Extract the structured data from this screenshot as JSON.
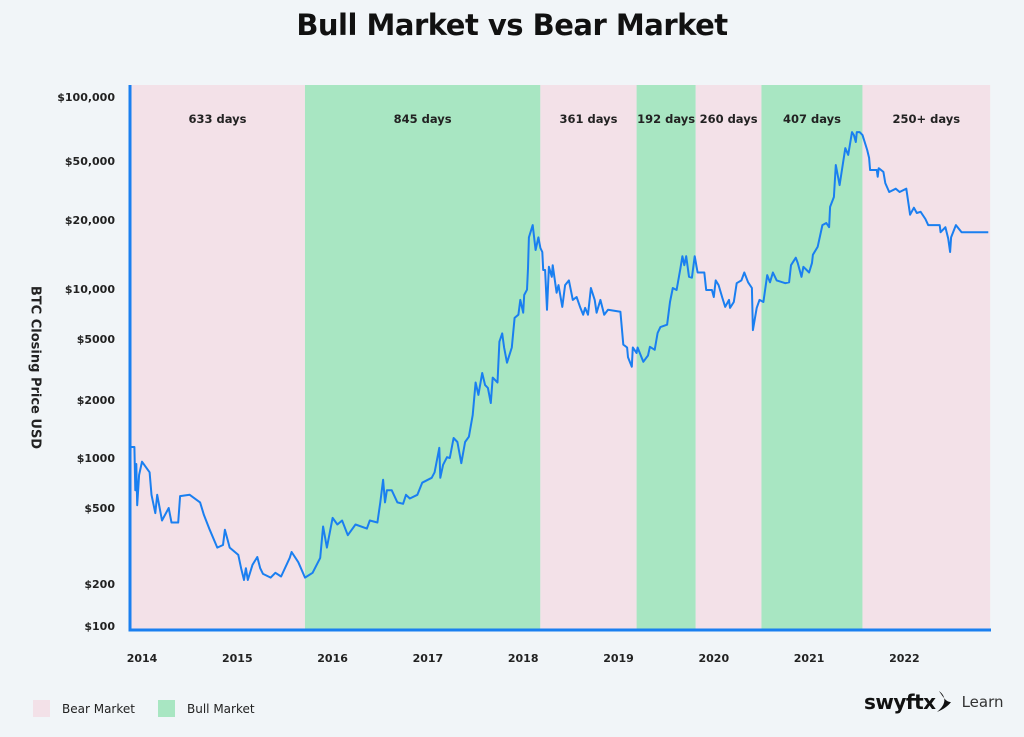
{
  "chart_data": {
    "type": "line",
    "title": "Bull Market vs Bear Market",
    "ylabel": "BTC Closing Price USD",
    "xlabel": "",
    "y_scale": "log-like (tick spacing as printed)",
    "y_ticks": [
      100,
      200,
      500,
      1000,
      2000,
      5000,
      10000,
      20000,
      50000,
      100000
    ],
    "y_tick_labels": [
      "$100",
      "$200",
      "$500",
      "$1000",
      "$2000",
      "$5000",
      "$10,000",
      "$20,000",
      "$50,000",
      "$100,000"
    ],
    "x_ticks": [
      2014,
      2015,
      2016,
      2017,
      2018,
      2019,
      2020,
      2021,
      2022
    ],
    "x_tick_labels": [
      "2014",
      "2015",
      "2016",
      "2017",
      "2018",
      "2019",
      "2020",
      "2021",
      "2022"
    ],
    "xlim": [
      2013.87,
      2022.9
    ],
    "ylim": [
      100,
      120000
    ],
    "grid": false,
    "line_color": "#1a7ff0",
    "bands": [
      {
        "type": "bear",
        "start": 2013.87,
        "end": 2015.71,
        "label": "633 days"
      },
      {
        "type": "bull",
        "start": 2015.71,
        "end": 2018.18,
        "label": "845 days"
      },
      {
        "type": "bear",
        "start": 2018.18,
        "end": 2019.19,
        "label": "361 days"
      },
      {
        "type": "bull",
        "start": 2019.19,
        "end": 2019.81,
        "label": "192 days"
      },
      {
        "type": "bear",
        "start": 2019.81,
        "end": 2020.5,
        "label": "260 days"
      },
      {
        "type": "bull",
        "start": 2020.5,
        "end": 2021.56,
        "label": "407 days"
      },
      {
        "type": "bear",
        "start": 2021.56,
        "end": 2022.9,
        "label": "250+ days"
      }
    ],
    "band_colors": {
      "bear": "#f3e1e8",
      "bull": "#a8e6c2"
    },
    "series": [
      {
        "x": [
          2013.87,
          2013.88,
          2013.92,
          2013.93,
          2013.94,
          2013.95,
          2013.97,
          2014.0,
          2014.08,
          2014.1,
          2014.14,
          2014.16,
          2014.21,
          2014.28,
          2014.31,
          2014.38,
          2014.4,
          2014.5,
          2014.61,
          2014.65,
          2014.71,
          2014.79,
          2014.85,
          2014.87,
          2014.92,
          2015.01,
          2015.04,
          2015.07,
          2015.09,
          2015.11,
          2015.16,
          2015.21,
          2015.24,
          2015.27,
          2015.35,
          2015.4,
          2015.46,
          2015.55,
          2015.57,
          2015.64,
          2015.71,
          2015.79,
          2015.87,
          2015.9,
          2015.94,
          2016.0,
          2016.05,
          2016.1,
          2016.16,
          2016.24,
          2016.36,
          2016.39,
          2016.47,
          2016.5,
          2016.53,
          2016.55,
          2016.57,
          2016.62,
          2016.68,
          2016.74,
          2016.77,
          2016.81,
          2016.89,
          2016.94,
          2017.04,
          2017.07,
          2017.12,
          2017.13,
          2017.16,
          2017.2,
          2017.23,
          2017.27,
          2017.31,
          2017.35,
          2017.39,
          2017.43,
          2017.47,
          2017.5,
          2017.53,
          2017.57,
          2017.6,
          2017.63,
          2017.66,
          2017.68,
          2017.73,
          2017.75,
          2017.78,
          2017.8,
          2017.83,
          2017.88,
          2017.91,
          2017.95,
          2017.97,
          2018.0,
          2018.01,
          2018.04,
          2018.05,
          2018.06,
          2018.1,
          2018.13,
          2018.16,
          2018.18,
          2018.2,
          2018.21,
          2018.23,
          2018.25,
          2018.27,
          2018.3,
          2018.31,
          2018.35,
          2018.37,
          2018.41,
          2018.44,
          2018.48,
          2018.52,
          2018.56,
          2018.6,
          2018.63,
          2018.65,
          2018.68,
          2018.71,
          2018.75,
          2018.77,
          2018.81,
          2018.85,
          2018.89,
          2019.02,
          2019.05,
          2019.09,
          2019.1,
          2019.14,
          2019.15,
          2019.19,
          2019.2,
          2019.26,
          2019.31,
          2019.33,
          2019.38,
          2019.41,
          2019.44,
          2019.51,
          2019.54,
          2019.57,
          2019.61,
          2019.65,
          2019.67,
          2019.69,
          2019.71,
          2019.74,
          2019.77,
          2019.8,
          2019.83,
          2019.9,
          2019.92,
          2019.98,
          2020.0,
          2020.02,
          2020.05,
          2020.09,
          2020.12,
          2020.16,
          2020.17,
          2020.21,
          2020.24,
          2020.29,
          2020.32,
          2020.36,
          2020.4,
          2020.41,
          2020.45,
          2020.48,
          2020.52,
          2020.56,
          2020.59,
          2020.62,
          2020.66,
          2020.75,
          2020.79,
          2020.81,
          2020.86,
          2020.88,
          2020.92,
          2020.94,
          2021.0,
          2021.03,
          2021.04,
          2021.09,
          2021.14,
          2021.18,
          2021.21,
          2021.22,
          2021.26,
          2021.28,
          2021.32,
          2021.38,
          2021.41,
          2021.45,
          2021.47,
          2021.49,
          2021.5,
          2021.53,
          2021.56,
          2021.61,
          2021.63,
          2021.64,
          2021.71,
          2021.72,
          2021.73,
          2021.78,
          2021.8,
          2021.84,
          2021.91,
          2021.95,
          2022.02,
          2022.06,
          2022.1,
          2022.13,
          2022.17,
          2022.22,
          2022.25,
          2022.37,
          2022.38,
          2022.43,
          2022.46,
          2022.48,
          2022.49,
          2022.54,
          2022.6,
          2022.88
        ],
        "y": [
          650,
          1140,
          1140,
          640,
          920,
          520,
          790,
          950,
          820,
          600,
          470,
          600,
          430,
          500,
          420,
          420,
          590,
          600,
          540,
          460,
          385,
          310,
          320,
          385,
          310,
          284,
          242,
          210,
          242,
          210,
          252,
          277,
          242,
          226,
          216,
          229,
          219,
          274,
          294,
          260,
          216,
          229,
          274,
          400,
          310,
          444,
          410,
          430,
          360,
          410,
          390,
          430,
          420,
          540,
          740,
          540,
          640,
          640,
          540,
          530,
          600,
          570,
          600,
          710,
          760,
          820,
          1130,
          760,
          910,
          1010,
          1000,
          1270,
          1210,
          930,
          1210,
          1290,
          1670,
          2600,
          2160,
          3000,
          2500,
          2400,
          1930,
          2800,
          2600,
          4800,
          5400,
          4400,
          3500,
          4400,
          6700,
          7000,
          8600,
          7200,
          9200,
          9900,
          12300,
          16800,
          19000,
          14800,
          16800,
          15100,
          14500,
          12100,
          12100,
          7500,
          12500,
          11300,
          12700,
          9500,
          10400,
          7800,
          10400,
          10900,
          8600,
          8950,
          7700,
          7000,
          7700,
          7000,
          10100,
          8600,
          7200,
          8600,
          7000,
          7500,
          7300,
          4600,
          4400,
          3800,
          3300,
          4400,
          4050,
          4400,
          3550,
          3900,
          4450,
          4250,
          5430,
          5900,
          6100,
          8350,
          10100,
          9860,
          12300,
          13900,
          12700,
          13900,
          11300,
          11200,
          13900,
          11800,
          11800,
          9860,
          9860,
          8950,
          10900,
          10400,
          8830,
          7800,
          8600,
          7700,
          8350,
          10600,
          10900,
          11800,
          10700,
          10100,
          5660,
          7700,
          8600,
          8350,
          11500,
          10700,
          11800,
          10900,
          10600,
          10700,
          12700,
          13700,
          13000,
          11300,
          12500,
          11800,
          13000,
          14100,
          15300,
          19000,
          19400,
          18600,
          24500,
          28600,
          47000,
          34400,
          57500,
          53400,
          68400,
          66200,
          61400,
          68400,
          68400,
          66200,
          56300,
          51700,
          43500,
          43500,
          39100,
          44700,
          42200,
          35500,
          30900,
          32500,
          30900,
          32500,
          21700,
          24200,
          22300,
          22700,
          20300,
          19000,
          19000,
          17700,
          18600,
          16600,
          14500,
          16800,
          19000,
          17700,
          17700
        ]
      }
    ]
  },
  "legend": [
    {
      "label": "Bear Market",
      "color": "#f3e1e8"
    },
    {
      "label": "Bull Market",
      "color": "#a8e6c2"
    }
  ],
  "logo": {
    "brand": "swyftx",
    "suffix": "Learn"
  },
  "colors": {
    "background": "#f1f5f8",
    "axis": "#1a7ff0"
  }
}
